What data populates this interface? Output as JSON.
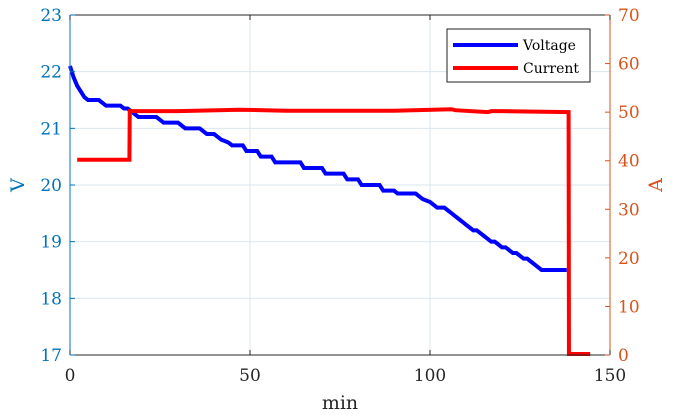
{
  "chart_data": {
    "type": "line",
    "title": "",
    "xlabel": "min",
    "ylabel_left": "V",
    "ylabel_right": "A",
    "xlim": [
      0,
      150
    ],
    "ylim_left": [
      17,
      23
    ],
    "ylim_right": [
      0,
      70
    ],
    "xticks": [
      "0",
      "50",
      "100",
      "150"
    ],
    "yticks_left": [
      "17",
      "18",
      "19",
      "20",
      "21",
      "22",
      "23"
    ],
    "yticks_right": [
      "0",
      "10",
      "20",
      "30",
      "40",
      "50",
      "60",
      "70"
    ],
    "grid": true,
    "legend_position": "top-right",
    "colors": {
      "voltage": "#0000ff",
      "current": "#ff0000",
      "left_axis": "#0072bd",
      "right_axis": "#d95319",
      "grid": "#d9e6ee"
    },
    "series": [
      {
        "name": "Voltage",
        "axis": "left",
        "x": [
          0,
          0.5,
          1,
          2,
          3,
          4,
          5,
          6,
          8,
          9,
          10,
          11,
          14,
          15,
          16,
          17,
          18,
          19,
          20,
          24,
          25,
          26,
          30,
          31,
          32,
          36,
          37,
          38,
          40,
          41,
          42,
          44,
          45,
          48,
          49,
          52,
          53,
          56,
          57,
          64,
          65,
          70,
          71,
          76,
          77,
          80,
          81,
          86,
          87,
          90,
          91,
          96,
          97,
          98,
          100,
          101,
          102,
          103,
          104,
          105,
          106,
          107,
          108,
          109,
          110,
          111,
          112,
          113,
          114,
          115,
          116,
          117,
          118,
          119,
          120,
          121,
          122,
          123,
          124,
          125,
          126,
          127,
          128,
          129,
          130,
          131,
          132,
          133,
          134,
          135,
          136,
          137,
          138
        ],
        "y": [
          22.1,
          22.0,
          21.9,
          21.75,
          21.65,
          21.55,
          21.5,
          21.5,
          21.5,
          21.45,
          21.4,
          21.4,
          21.4,
          21.35,
          21.35,
          21.3,
          21.25,
          21.2,
          21.2,
          21.2,
          21.15,
          21.1,
          21.1,
          21.05,
          21.0,
          21.0,
          20.95,
          20.9,
          20.9,
          20.85,
          20.8,
          20.75,
          20.7,
          20.7,
          20.6,
          20.6,
          20.5,
          20.5,
          20.4,
          20.4,
          20.3,
          20.3,
          20.2,
          20.2,
          20.1,
          20.1,
          20.0,
          20.0,
          19.9,
          19.9,
          19.85,
          19.85,
          19.8,
          19.75,
          19.7,
          19.65,
          19.6,
          19.6,
          19.6,
          19.55,
          19.5,
          19.45,
          19.4,
          19.35,
          19.3,
          19.25,
          19.2,
          19.2,
          19.15,
          19.1,
          19.05,
          19.0,
          19.0,
          18.95,
          18.9,
          18.9,
          18.85,
          18.8,
          18.8,
          18.75,
          18.7,
          18.7,
          18.65,
          18.6,
          18.55,
          18.5,
          18.5,
          18.5,
          18.5,
          18.5,
          18.5,
          18.5,
          18.5
        ]
      },
      {
        "name": "Current",
        "axis": "right",
        "x": [
          2,
          16.5,
          16.6,
          30,
          47,
          60,
          90,
          106,
          107,
          116,
          117,
          120,
          138.5,
          138.6,
          144.5
        ],
        "y": [
          40.2,
          40.2,
          50.2,
          50.2,
          50.5,
          50.3,
          50.3,
          50.6,
          50.4,
          50.0,
          50.2,
          50.2,
          50.0,
          0.2,
          0.2
        ]
      }
    ]
  }
}
